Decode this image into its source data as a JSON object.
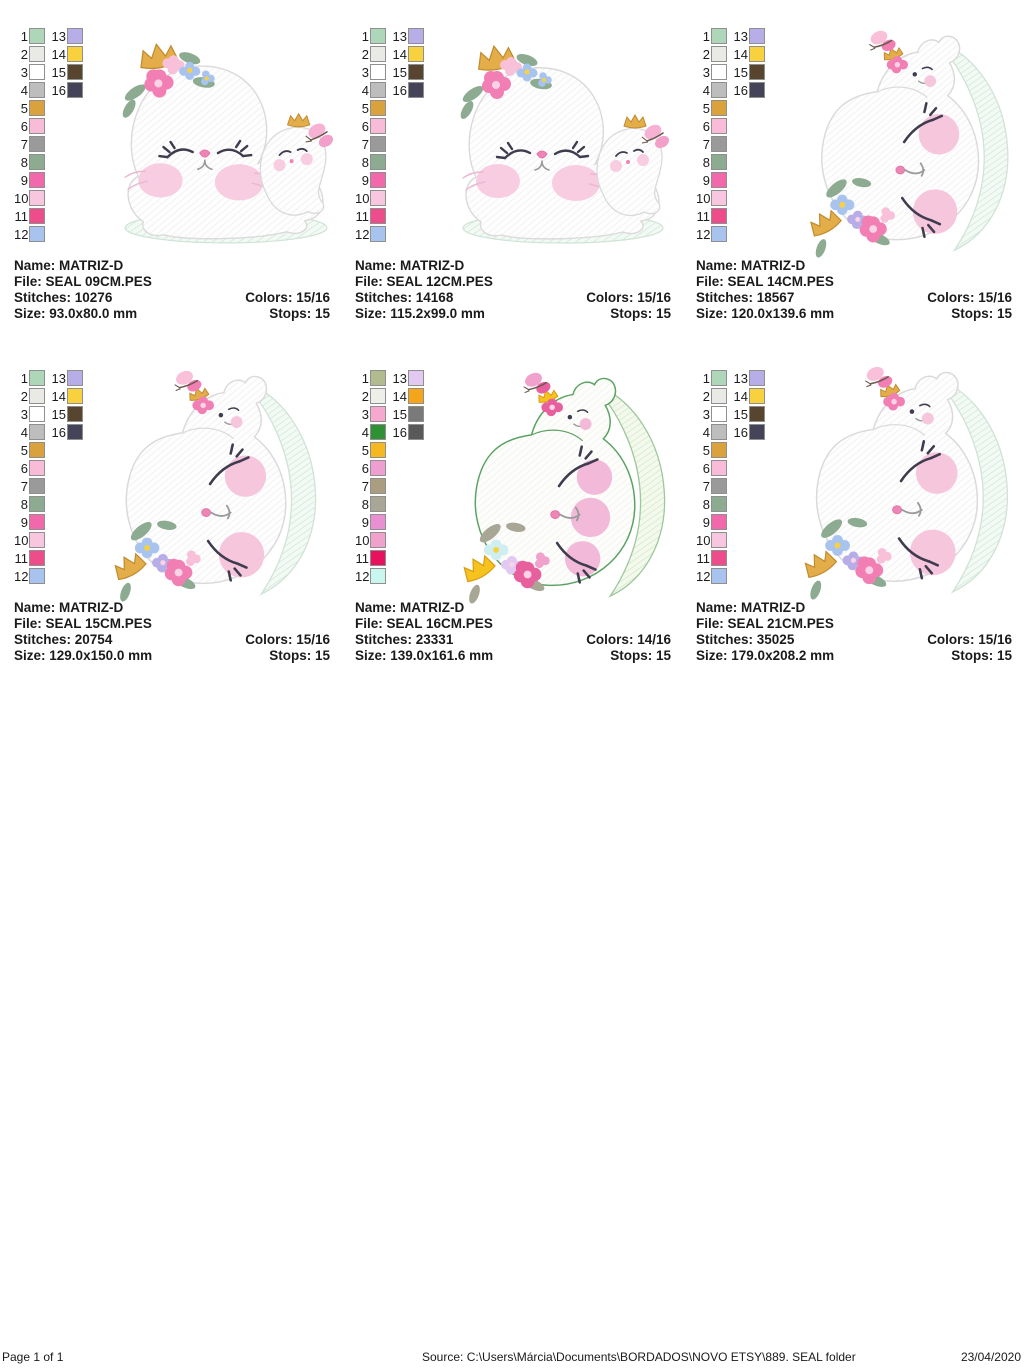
{
  "labels": {
    "name": "Name:",
    "file": "File:",
    "stitches": "Stitches:",
    "size": "Size:",
    "colors": "Colors:",
    "stops": "Stops:"
  },
  "palettes": {
    "standard": [
      {
        "n": "1",
        "hex": "#aed6b8"
      },
      {
        "n": "2",
        "hex": "#e9e9e6"
      },
      {
        "n": "3",
        "hex": "#ffffff"
      },
      {
        "n": "4",
        "hex": "#bdbdbd"
      },
      {
        "n": "5",
        "hex": "#d9a23c"
      },
      {
        "n": "6",
        "hex": "#f8bcd9"
      },
      {
        "n": "7",
        "hex": "#9a9a9a"
      },
      {
        "n": "8",
        "hex": "#8cab90"
      },
      {
        "n": "9",
        "hex": "#f169ab"
      },
      {
        "n": "10",
        "hex": "#f9c6df"
      },
      {
        "n": "11",
        "hex": "#ee4d8b"
      },
      {
        "n": "12",
        "hex": "#a9c3ef"
      },
      {
        "n": "13",
        "hex": "#b7aee8"
      },
      {
        "n": "14",
        "hex": "#f7d23e"
      },
      {
        "n": "15",
        "hex": "#57452f"
      },
      {
        "n": "16",
        "hex": "#454358"
      }
    ],
    "applique": [
      {
        "n": "1",
        "hex": "#b2ba90"
      },
      {
        "n": "2",
        "hex": "#efefe9"
      },
      {
        "n": "3",
        "hex": "#f7a8ce"
      },
      {
        "n": "4",
        "hex": "#2f9135"
      },
      {
        "n": "5",
        "hex": "#f5b821"
      },
      {
        "n": "6",
        "hex": "#ef9ed2"
      },
      {
        "n": "7",
        "hex": "#ab9d82"
      },
      {
        "n": "8",
        "hex": "#a8a694"
      },
      {
        "n": "9",
        "hex": "#e98fd2"
      },
      {
        "n": "10",
        "hex": "#f0a2cc"
      },
      {
        "n": "11",
        "hex": "#e8115e"
      },
      {
        "n": "12",
        "hex": "#c9f6ee"
      },
      {
        "n": "13",
        "hex": "#e2c9f2"
      },
      {
        "n": "14",
        "hex": "#f5a519"
      },
      {
        "n": "15",
        "hex": "#7a7a7a"
      },
      {
        "n": "16",
        "hex": "#595959"
      }
    ]
  },
  "designs": [
    {
      "name": "MATRIZ-D",
      "file": "SEAL 09CM.PES",
      "stitches": "10276",
      "size": "93.0x80.0 mm",
      "colors": "15/16",
      "stops": "15",
      "palette": "standard",
      "artwork": "lying-seal-with-baby"
    },
    {
      "name": "MATRIZ-D",
      "file": "SEAL 12CM.PES",
      "stitches": "14168",
      "size": "115.2x99.0 mm",
      "colors": "15/16",
      "stops": "15",
      "palette": "standard",
      "artwork": "lying-seal-with-baby"
    },
    {
      "name": "MATRIZ-D",
      "file": "SEAL 14CM.PES",
      "stitches": "18567",
      "size": "120.0x139.6 mm",
      "colors": "15/16",
      "stops": "15",
      "palette": "standard",
      "artwork": "curled-seal"
    },
    {
      "name": "MATRIZ-D",
      "file": "SEAL 15CM.PES",
      "stitches": "20754",
      "size": "129.0x150.0 mm",
      "colors": "15/16",
      "stops": "15",
      "palette": "standard",
      "artwork": "curled-seal"
    },
    {
      "name": "MATRIZ-D",
      "file": "SEAL 16CM.PES",
      "stitches": "23331",
      "size": "139.0x161.6 mm",
      "colors": "14/16",
      "stops": "15",
      "palette": "applique",
      "artwork": "curled-seal-applique"
    },
    {
      "name": "MATRIZ-D",
      "file": "SEAL 21CM.PES",
      "stitches": "35025",
      "size": "179.0x208.2 mm",
      "colors": "15/16",
      "stops": "15",
      "palette": "standard",
      "artwork": "curled-seal"
    }
  ],
  "footer": {
    "page_label": "Page 1 of 1",
    "source": "Source: C:\\Users\\Márcia\\Documents\\BORDADOS\\NOVO ETSY\\889. SEAL folder",
    "date": "23/04/2020"
  }
}
